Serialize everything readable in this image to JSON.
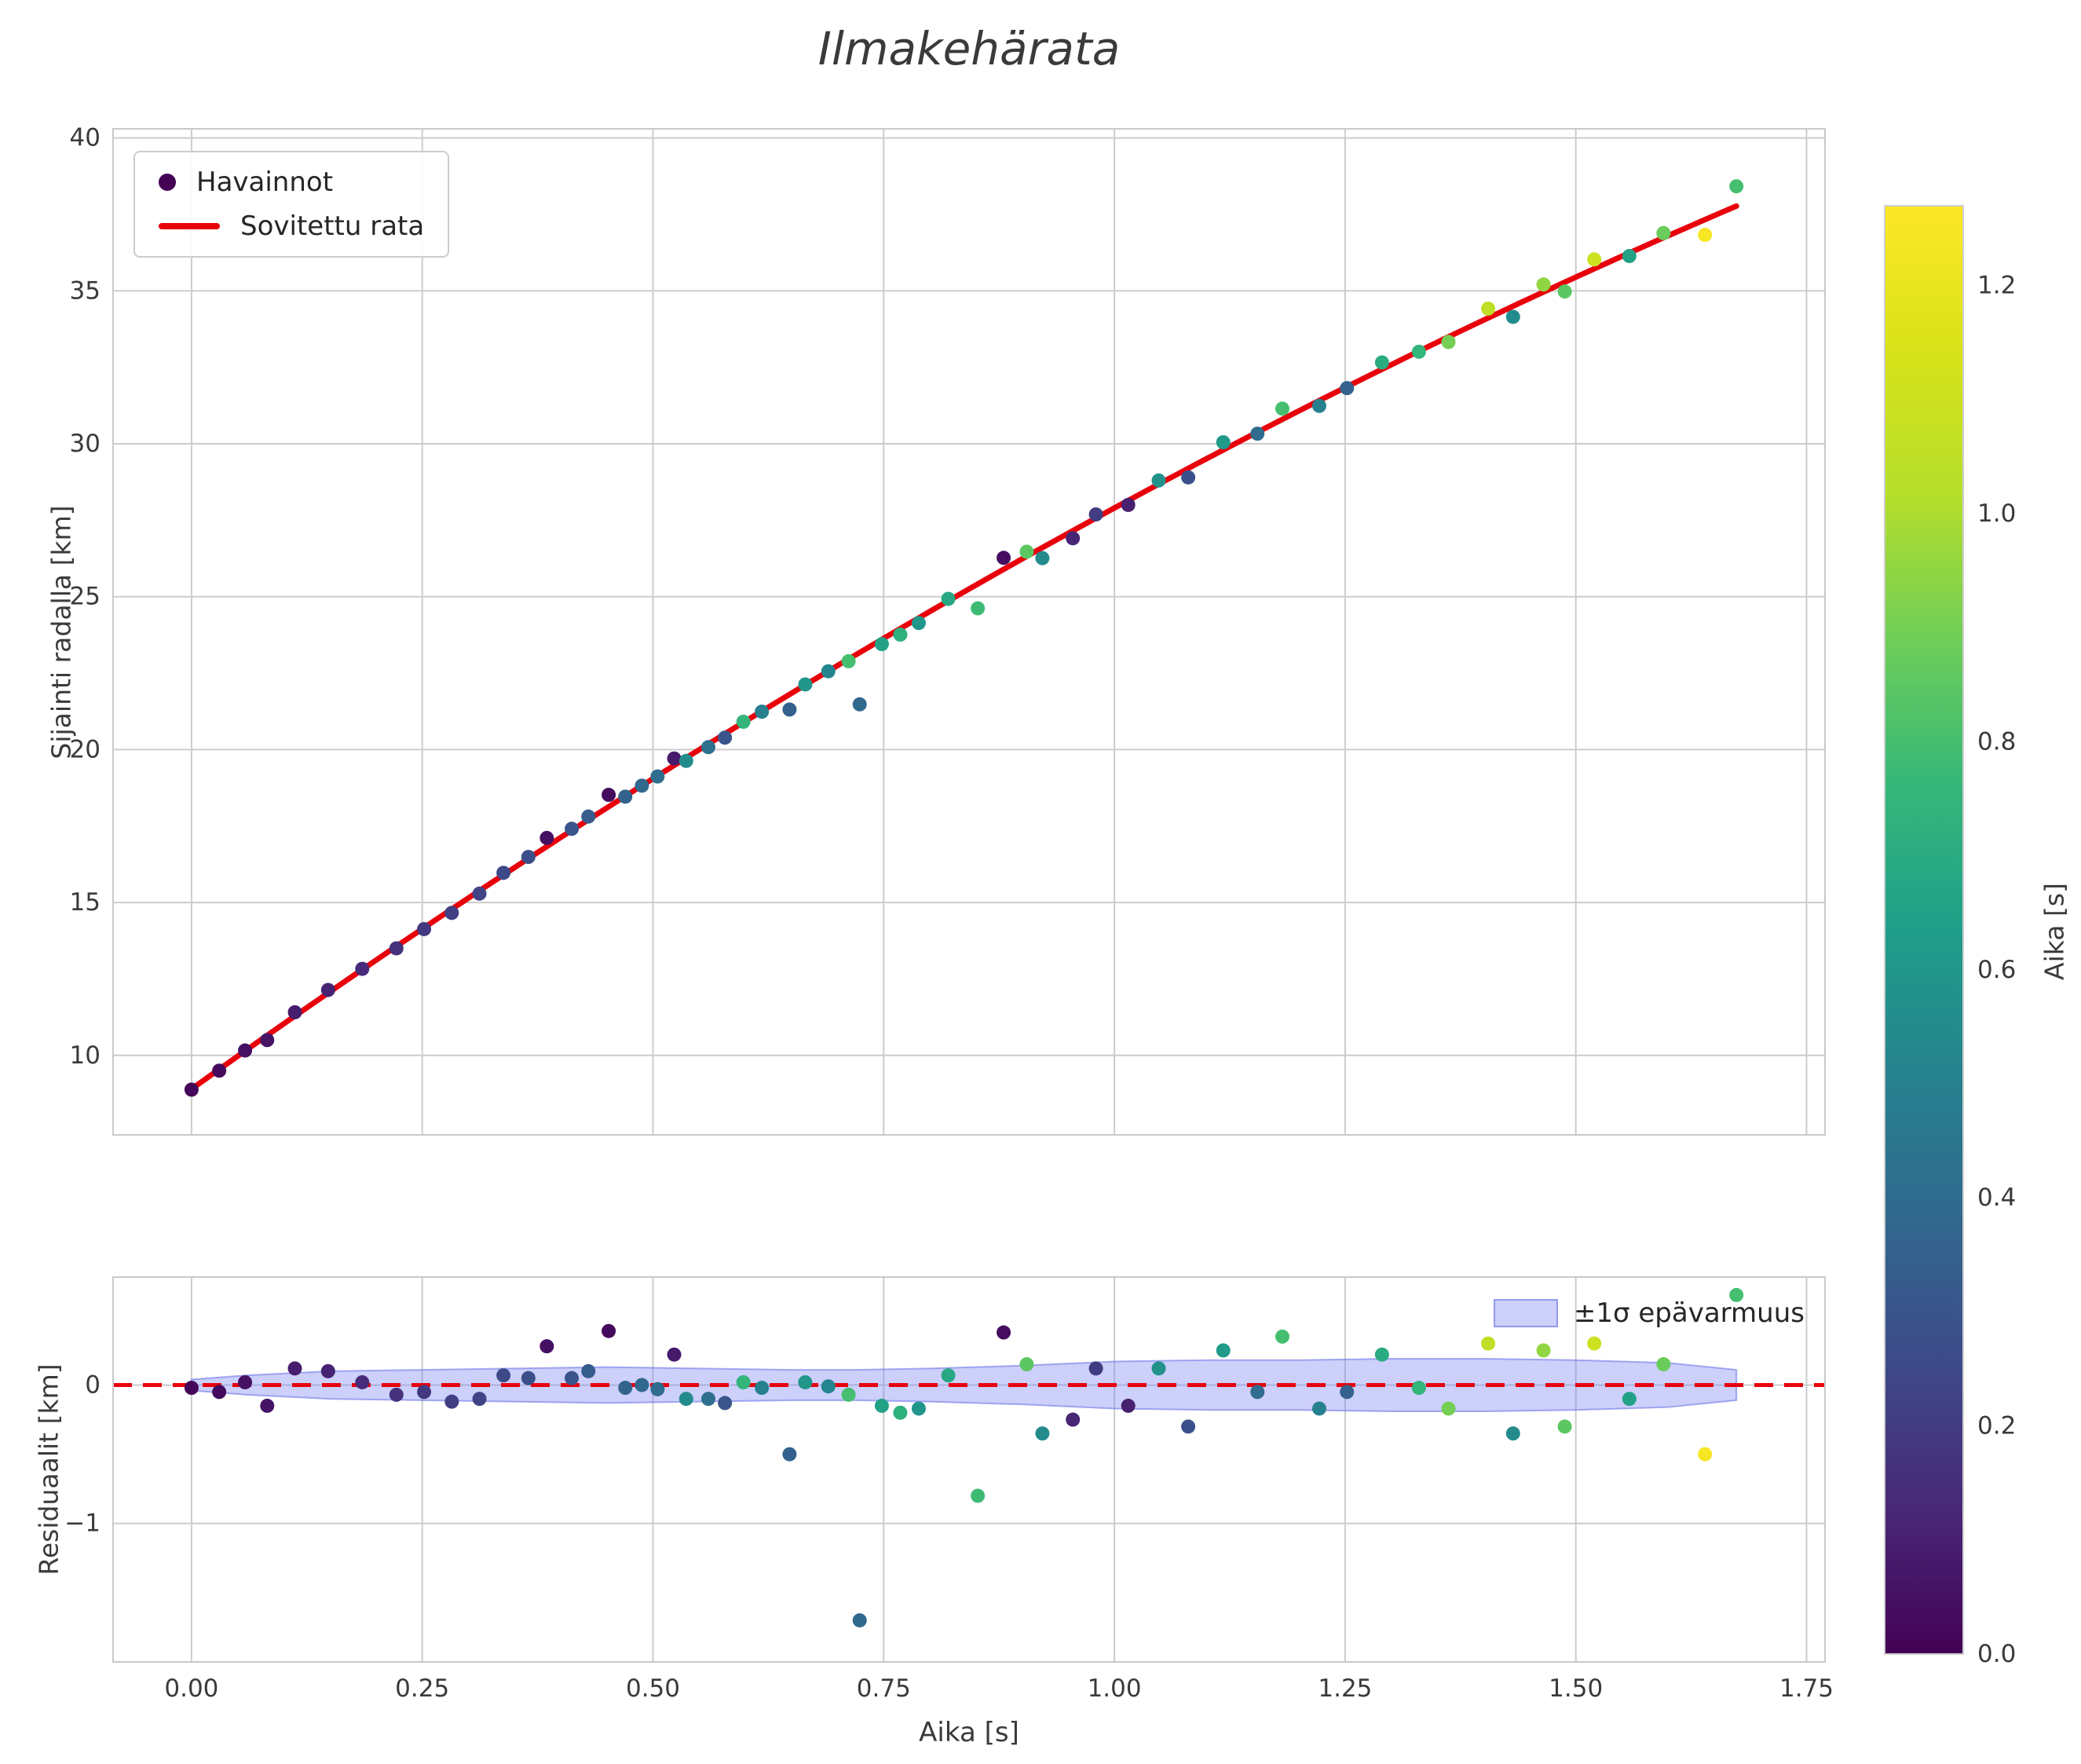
{
  "colors": {
    "fit_line": "#e8000b",
    "zero_line": "#e8000b",
    "grid": "#cccccc",
    "spine": "#c9c9c9",
    "text": "#3a3a3a",
    "legend_marker": "#440154",
    "band_fill": "rgba(110,120,240,0.35)",
    "band_edge": "rgba(100,110,230,0.55)",
    "viridis": [
      "#440154",
      "#482878",
      "#3e4a89",
      "#31688e",
      "#26828e",
      "#1f9e89",
      "#35b779",
      "#6ece58",
      "#b5de2b",
      "#d8e219",
      "#fde725"
    ]
  },
  "chart_data": {
    "type": "scatter",
    "title": "Ilmakehärata",
    "xlabel": "Aika [s]",
    "xlim": [
      -0.085,
      1.77
    ],
    "x_ticks": [
      0,
      0.25,
      0.5,
      0.75,
      1.0,
      1.25,
      1.5,
      1.75
    ],
    "x_tick_labels": [
      "0.00",
      "0.25",
      "0.50",
      "0.75",
      "1.00",
      "1.25",
      "1.50",
      "1.75"
    ],
    "panels": [
      {
        "name": "trajectory",
        "ylabel": "Sijainti radalla [km]",
        "ylim": [
          7.4,
          40.3
        ],
        "y_ticks": [
          10,
          15,
          20,
          25,
          30,
          35,
          40
        ],
        "y_tick_labels": [
          "10",
          "15",
          "20",
          "25",
          "30",
          "35",
          "40"
        ],
        "legend": [
          {
            "label": "Havainnot",
            "type": "marker"
          },
          {
            "label": "Sovitettu rata",
            "type": "line"
          }
        ],
        "fit_curve": {
          "label": "Sovitettu rata",
          "a": 8.9,
          "b": 21.6,
          "c": -2.6,
          "t_min": 0.0,
          "t_max": 1.674
        }
      },
      {
        "name": "residuals",
        "ylabel": "Residuaalit [km]",
        "ylim": [
          -2.0,
          0.78
        ],
        "y_ticks": [
          0,
          -1
        ],
        "y_tick_labels": [
          "0",
          "−1"
        ],
        "legend": [
          {
            "label": "±1σ epävarmuus",
            "type": "patch"
          }
        ],
        "zero_line": 0,
        "band": {
          "t": [
            0.0,
            0.06,
            0.15,
            0.25,
            0.35,
            0.45,
            0.55,
            0.65,
            0.72,
            0.8,
            0.9,
            1.0,
            1.1,
            1.2,
            1.3,
            1.4,
            1.5,
            1.6,
            1.674
          ],
          "sigma": [
            0.04,
            0.07,
            0.1,
            0.11,
            0.12,
            0.13,
            0.12,
            0.11,
            0.11,
            0.12,
            0.14,
            0.17,
            0.18,
            0.18,
            0.19,
            0.19,
            0.18,
            0.16,
            0.11
          ]
        }
      }
    ],
    "points": {
      "t": [
        0.0,
        0.03,
        0.058,
        0.082,
        0.112,
        0.148,
        0.185,
        0.222,
        0.252,
        0.282,
        0.312,
        0.338,
        0.365,
        0.385,
        0.412,
        0.43,
        0.452,
        0.47,
        0.488,
        0.505,
        0.523,
        0.536,
        0.56,
        0.578,
        0.598,
        0.618,
        0.648,
        0.665,
        0.69,
        0.712,
        0.724,
        0.748,
        0.768,
        0.788,
        0.82,
        0.852,
        0.88,
        0.905,
        0.922,
        0.955,
        0.98,
        1.015,
        1.048,
        1.08,
        1.118,
        1.155,
        1.182,
        1.222,
        1.252,
        1.29,
        1.33,
        1.362,
        1.405,
        1.432,
        1.465,
        1.488,
        1.52,
        1.558,
        1.595,
        1.64,
        1.674
      ],
      "pos": [
        8.88,
        9.5,
        10.16,
        10.5,
        11.41,
        12.14,
        12.83,
        13.5,
        14.13,
        14.66,
        15.29,
        15.97,
        16.49,
        17.11,
        17.41,
        17.81,
        18.52,
        18.46,
        18.82,
        19.12,
        19.71,
        19.63,
        20.08,
        20.39,
        20.91,
        21.24,
        21.31,
        22.13,
        22.56,
        22.89,
        21.48,
        23.45,
        23.76,
        24.14,
        24.93,
        24.62,
        26.27,
        26.47,
        26.26,
        26.91,
        27.69,
        28.0,
        28.8,
        28.9,
        30.05,
        30.33,
        31.15,
        31.24,
        31.82,
        32.66,
        33.01,
        33.33,
        34.42,
        34.15,
        35.21,
        34.98,
        36.03,
        36.14,
        36.89,
        36.83,
        38.42
      ],
      "resid": [
        -0.02,
        -0.05,
        0.02,
        -0.15,
        0.12,
        0.1,
        0.02,
        -0.07,
        -0.05,
        -0.12,
        -0.1,
        0.07,
        0.05,
        0.28,
        0.05,
        0.1,
        0.39,
        -0.02,
        0.0,
        -0.03,
        0.22,
        -0.1,
        -0.1,
        -0.13,
        0.02,
        -0.02,
        -0.5,
        0.02,
        -0.01,
        -0.07,
        -1.7,
        -0.15,
        -0.2,
        -0.17,
        0.07,
        -0.8,
        0.38,
        0.15,
        -0.35,
        -0.25,
        0.12,
        -0.15,
        0.12,
        -0.3,
        0.25,
        -0.05,
        0.35,
        -0.17,
        -0.05,
        0.22,
        -0.02,
        -0.17,
        0.3,
        -0.35,
        0.25,
        -0.3,
        0.3,
        -0.1,
        0.15,
        -0.5,
        0.65
      ],
      "color": [
        0.02,
        0.03,
        0.05,
        0.06,
        0.09,
        0.11,
        0.14,
        0.16,
        0.19,
        0.21,
        0.23,
        0.25,
        0.27,
        0.05,
        0.3,
        0.33,
        0.03,
        0.36,
        0.38,
        0.4,
        0.08,
        0.55,
        0.42,
        0.3,
        0.75,
        0.5,
        0.35,
        0.6,
        0.52,
        0.8,
        0.38,
        0.65,
        0.72,
        0.6,
        0.68,
        0.78,
        0.04,
        0.85,
        0.55,
        0.12,
        0.2,
        0.1,
        0.58,
        0.28,
        0.62,
        0.4,
        0.8,
        0.5,
        0.35,
        0.7,
        0.75,
        0.9,
        1.05,
        0.55,
        0.95,
        0.85,
        1.1,
        0.65,
        0.88,
        1.25,
        0.8
      ]
    },
    "colorbar": {
      "label": "Aika [s]",
      "vmin": 0,
      "vmax": 1.27,
      "ticks": [
        0,
        0.2,
        0.4,
        0.6,
        0.8,
        1.0,
        1.2
      ],
      "tick_labels": [
        "0.0",
        "0.2",
        "0.4",
        "0.6",
        "0.8",
        "1.0",
        "1.2"
      ]
    }
  }
}
